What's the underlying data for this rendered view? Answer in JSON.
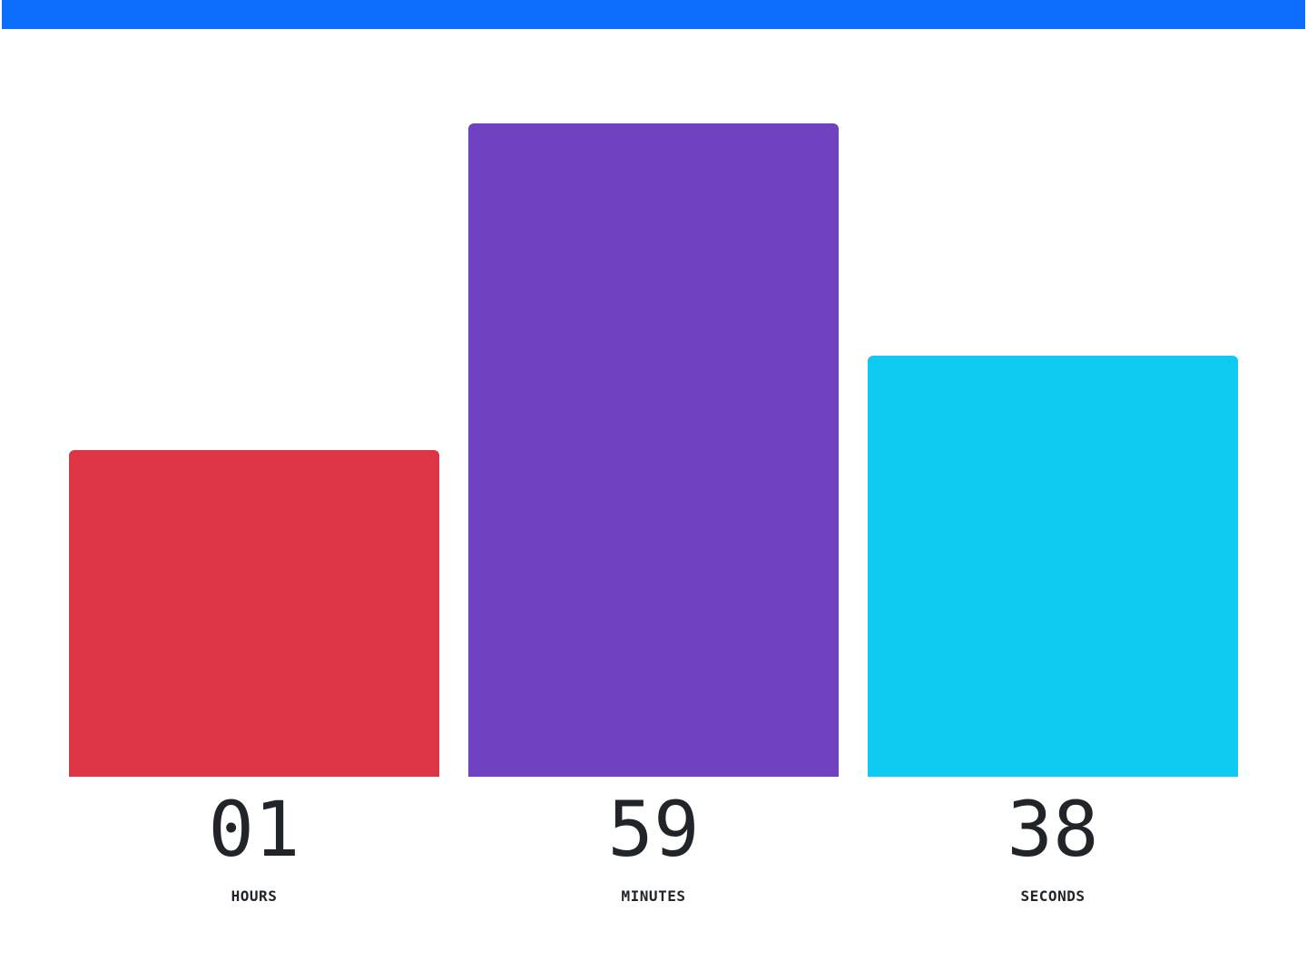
{
  "colors": {
    "top_bar": "#0d6efd",
    "hours": "#dc3545",
    "minutes": "#6f42c1",
    "seconds": "#0dcaf0",
    "text": "#212529"
  },
  "countdown": {
    "hours": {
      "value": "01",
      "label": "HOURS",
      "fraction": 0.5
    },
    "minutes": {
      "value": "59",
      "label": "MINUTES",
      "fraction": 1.0
    },
    "seconds": {
      "value": "38",
      "label": "SECONDS",
      "fraction": 0.644
    }
  }
}
